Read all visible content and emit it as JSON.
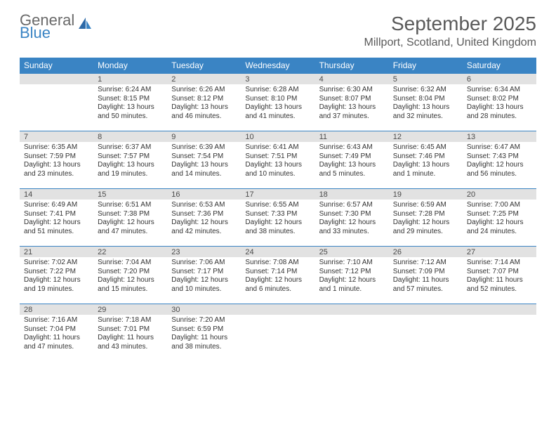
{
  "brand": {
    "word1": "General",
    "word2": "Blue"
  },
  "title": "September 2025",
  "location": "Millport, Scotland, United Kingdom",
  "colors": {
    "header_bg": "#3a84c4",
    "header_text": "#ffffff",
    "daynum_bg": "#e2e2e2",
    "rule": "#3a84c4",
    "body_text": "#333333",
    "title_text": "#5a5a5a"
  },
  "weekdays": [
    "Sunday",
    "Monday",
    "Tuesday",
    "Wednesday",
    "Thursday",
    "Friday",
    "Saturday"
  ],
  "weeks": [
    [
      {
        "day": "",
        "sunrise": "",
        "sunset": "",
        "daylight": ""
      },
      {
        "day": "1",
        "sunrise": "Sunrise: 6:24 AM",
        "sunset": "Sunset: 8:15 PM",
        "daylight": "Daylight: 13 hours and 50 minutes."
      },
      {
        "day": "2",
        "sunrise": "Sunrise: 6:26 AM",
        "sunset": "Sunset: 8:12 PM",
        "daylight": "Daylight: 13 hours and 46 minutes."
      },
      {
        "day": "3",
        "sunrise": "Sunrise: 6:28 AM",
        "sunset": "Sunset: 8:10 PM",
        "daylight": "Daylight: 13 hours and 41 minutes."
      },
      {
        "day": "4",
        "sunrise": "Sunrise: 6:30 AM",
        "sunset": "Sunset: 8:07 PM",
        "daylight": "Daylight: 13 hours and 37 minutes."
      },
      {
        "day": "5",
        "sunrise": "Sunrise: 6:32 AM",
        "sunset": "Sunset: 8:04 PM",
        "daylight": "Daylight: 13 hours and 32 minutes."
      },
      {
        "day": "6",
        "sunrise": "Sunrise: 6:34 AM",
        "sunset": "Sunset: 8:02 PM",
        "daylight": "Daylight: 13 hours and 28 minutes."
      }
    ],
    [
      {
        "day": "7",
        "sunrise": "Sunrise: 6:35 AM",
        "sunset": "Sunset: 7:59 PM",
        "daylight": "Daylight: 13 hours and 23 minutes."
      },
      {
        "day": "8",
        "sunrise": "Sunrise: 6:37 AM",
        "sunset": "Sunset: 7:57 PM",
        "daylight": "Daylight: 13 hours and 19 minutes."
      },
      {
        "day": "9",
        "sunrise": "Sunrise: 6:39 AM",
        "sunset": "Sunset: 7:54 PM",
        "daylight": "Daylight: 13 hours and 14 minutes."
      },
      {
        "day": "10",
        "sunrise": "Sunrise: 6:41 AM",
        "sunset": "Sunset: 7:51 PM",
        "daylight": "Daylight: 13 hours and 10 minutes."
      },
      {
        "day": "11",
        "sunrise": "Sunrise: 6:43 AM",
        "sunset": "Sunset: 7:49 PM",
        "daylight": "Daylight: 13 hours and 5 minutes."
      },
      {
        "day": "12",
        "sunrise": "Sunrise: 6:45 AM",
        "sunset": "Sunset: 7:46 PM",
        "daylight": "Daylight: 13 hours and 1 minute."
      },
      {
        "day": "13",
        "sunrise": "Sunrise: 6:47 AM",
        "sunset": "Sunset: 7:43 PM",
        "daylight": "Daylight: 12 hours and 56 minutes."
      }
    ],
    [
      {
        "day": "14",
        "sunrise": "Sunrise: 6:49 AM",
        "sunset": "Sunset: 7:41 PM",
        "daylight": "Daylight: 12 hours and 51 minutes."
      },
      {
        "day": "15",
        "sunrise": "Sunrise: 6:51 AM",
        "sunset": "Sunset: 7:38 PM",
        "daylight": "Daylight: 12 hours and 47 minutes."
      },
      {
        "day": "16",
        "sunrise": "Sunrise: 6:53 AM",
        "sunset": "Sunset: 7:36 PM",
        "daylight": "Daylight: 12 hours and 42 minutes."
      },
      {
        "day": "17",
        "sunrise": "Sunrise: 6:55 AM",
        "sunset": "Sunset: 7:33 PM",
        "daylight": "Daylight: 12 hours and 38 minutes."
      },
      {
        "day": "18",
        "sunrise": "Sunrise: 6:57 AM",
        "sunset": "Sunset: 7:30 PM",
        "daylight": "Daylight: 12 hours and 33 minutes."
      },
      {
        "day": "19",
        "sunrise": "Sunrise: 6:59 AM",
        "sunset": "Sunset: 7:28 PM",
        "daylight": "Daylight: 12 hours and 29 minutes."
      },
      {
        "day": "20",
        "sunrise": "Sunrise: 7:00 AM",
        "sunset": "Sunset: 7:25 PM",
        "daylight": "Daylight: 12 hours and 24 minutes."
      }
    ],
    [
      {
        "day": "21",
        "sunrise": "Sunrise: 7:02 AM",
        "sunset": "Sunset: 7:22 PM",
        "daylight": "Daylight: 12 hours and 19 minutes."
      },
      {
        "day": "22",
        "sunrise": "Sunrise: 7:04 AM",
        "sunset": "Sunset: 7:20 PM",
        "daylight": "Daylight: 12 hours and 15 minutes."
      },
      {
        "day": "23",
        "sunrise": "Sunrise: 7:06 AM",
        "sunset": "Sunset: 7:17 PM",
        "daylight": "Daylight: 12 hours and 10 minutes."
      },
      {
        "day": "24",
        "sunrise": "Sunrise: 7:08 AM",
        "sunset": "Sunset: 7:14 PM",
        "daylight": "Daylight: 12 hours and 6 minutes."
      },
      {
        "day": "25",
        "sunrise": "Sunrise: 7:10 AM",
        "sunset": "Sunset: 7:12 PM",
        "daylight": "Daylight: 12 hours and 1 minute."
      },
      {
        "day": "26",
        "sunrise": "Sunrise: 7:12 AM",
        "sunset": "Sunset: 7:09 PM",
        "daylight": "Daylight: 11 hours and 57 minutes."
      },
      {
        "day": "27",
        "sunrise": "Sunrise: 7:14 AM",
        "sunset": "Sunset: 7:07 PM",
        "daylight": "Daylight: 11 hours and 52 minutes."
      }
    ],
    [
      {
        "day": "28",
        "sunrise": "Sunrise: 7:16 AM",
        "sunset": "Sunset: 7:04 PM",
        "daylight": "Daylight: 11 hours and 47 minutes."
      },
      {
        "day": "29",
        "sunrise": "Sunrise: 7:18 AM",
        "sunset": "Sunset: 7:01 PM",
        "daylight": "Daylight: 11 hours and 43 minutes."
      },
      {
        "day": "30",
        "sunrise": "Sunrise: 7:20 AM",
        "sunset": "Sunset: 6:59 PM",
        "daylight": "Daylight: 11 hours and 38 minutes."
      },
      {
        "day": "",
        "sunrise": "",
        "sunset": "",
        "daylight": ""
      },
      {
        "day": "",
        "sunrise": "",
        "sunset": "",
        "daylight": ""
      },
      {
        "day": "",
        "sunrise": "",
        "sunset": "",
        "daylight": ""
      },
      {
        "day": "",
        "sunrise": "",
        "sunset": "",
        "daylight": ""
      }
    ]
  ]
}
